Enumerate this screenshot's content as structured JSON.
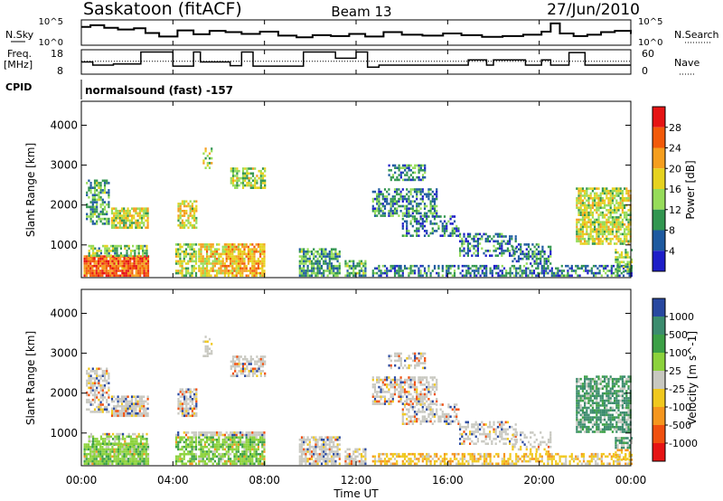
{
  "header": {
    "station": "Saskatoon (fitACF)",
    "beam": "Beam 13",
    "date": "27/Jun/2010"
  },
  "side_labels": {
    "nsky": "N.Sky",
    "nsearch": "N.Search",
    "freq_line1": "Freq.",
    "freq_line2": "[MHz]",
    "nave": "Nave",
    "cpid": "CPID",
    "cpid_value": "normalsound (fast) -157"
  },
  "colors": {
    "bg": "#ffffff",
    "ink": "#000000"
  },
  "chart_data": [
    {
      "type": "line",
      "name_label": "N.Sky / N.Search",
      "left_ticks": [
        "10^5",
        "10^0"
      ],
      "right_ticks": [
        "10^5",
        "10^0"
      ],
      "ylim_log10": [
        0,
        5
      ],
      "x_hours": [
        0.0,
        0.4,
        1.0,
        1.6,
        2.3,
        2.8,
        3.4,
        4.2,
        4.9,
        5.6,
        6.3,
        7.0,
        7.8,
        8.6,
        9.4,
        10.1,
        10.9,
        11.7,
        12.4,
        13.2,
        14.0,
        14.9,
        15.8,
        16.6,
        17.5,
        18.4,
        19.3,
        20.1,
        20.5,
        20.9,
        21.5,
        22.1,
        22.7,
        23.3,
        24.0
      ],
      "y_log10": [
        3.8,
        4.2,
        3.6,
        3.2,
        3.5,
        2.4,
        1.6,
        3.0,
        2.1,
        2.9,
        2.6,
        2.2,
        2.7,
        1.8,
        1.4,
        1.9,
        1.7,
        2.2,
        1.6,
        2.6,
        2.0,
        1.8,
        2.3,
        1.9,
        1.5,
        1.7,
        2.0,
        2.7,
        4.6,
        2.3,
        1.7,
        2.0,
        2.6,
        2.9,
        2.2
      ]
    },
    {
      "type": "line",
      "left_ticks": [
        "18",
        "8"
      ],
      "right_ticks": [
        "60",
        "0"
      ],
      "ylim_mhz": [
        8,
        18
      ],
      "freq_x_hours": [
        0,
        0.5,
        1.4,
        2.6,
        4.0,
        4.9,
        5.2,
        6.5,
        7.0,
        7.5,
        8.0,
        9.7,
        11.1,
        12.0,
        12.5,
        13.0,
        13.3,
        16.9,
        17.7,
        18.0,
        19.4,
        20.1,
        20.5,
        21.3,
        22.0,
        24.0
      ],
      "freq_mhz": [
        13,
        11.5,
        12,
        17.8,
        11,
        17.8,
        13,
        11.2,
        17.8,
        11,
        11,
        17.8,
        14.8,
        17.8,
        10.5,
        11.5,
        11.5,
        14,
        11.5,
        14,
        11.5,
        14,
        11.5,
        17.5,
        11.5,
        11.5
      ],
      "ref_line_mhz": 13.3,
      "nave_ref": 18
    },
    {
      "type": "heatmap",
      "quantity": "Power",
      "ylabel": "Slant Range [km]",
      "y_ticks": [
        1000,
        2000,
        3000,
        4000
      ],
      "ylim_km": [
        180,
        4600
      ],
      "xlim_hours": [
        0,
        24
      ],
      "colorbar_label": "Power [dB]",
      "colorbar_ticks": [
        "28",
        "24",
        "20",
        "16",
        "12",
        "8",
        "4"
      ],
      "colorbar_colors": [
        "#e61414",
        "#f25a0a",
        "#f59e1e",
        "#e6d21e",
        "#96dc5a",
        "#329650",
        "#1e5aa0",
        "#1e1ec8"
      ]
    },
    {
      "type": "heatmap",
      "quantity": "Velocity",
      "ylabel": "Slant Range [km]",
      "y_ticks": [
        1000,
        2000,
        3000,
        4000
      ],
      "ylim_km": [
        180,
        4600
      ],
      "xlim_hours": [
        0,
        24
      ],
      "xlabel": "Time UT",
      "x_ticks": [
        "00:00",
        "04:00",
        "08:00",
        "12:00",
        "16:00",
        "20:00",
        "00:00"
      ],
      "colorbar_label": "Velocity [m s^-1]",
      "colorbar_ticks": [
        "1000",
        "500",
        "100",
        "25",
        "-25",
        "-100",
        "-500",
        "-1000"
      ],
      "colorbar_colors": [
        "#2848a0",
        "#3c8c6e",
        "#3ca046",
        "#8cd23c",
        "#c8c8c0",
        "#f0c81e",
        "#f5961e",
        "#f0500f",
        "#e61414"
      ]
    }
  ]
}
